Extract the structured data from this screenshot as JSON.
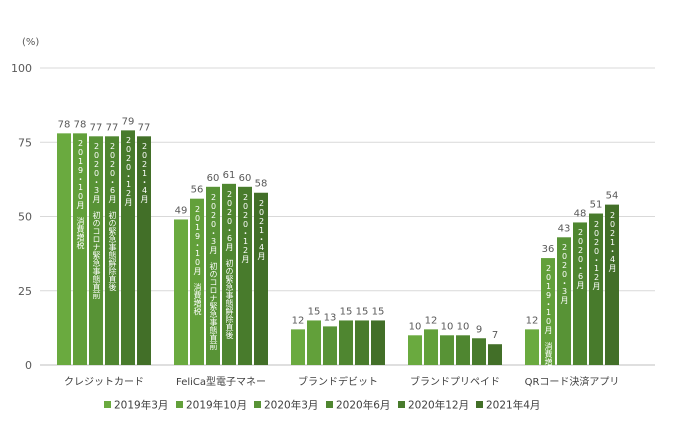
{
  "chart_data": {
    "type": "bar",
    "ylabel": "(%)",
    "ylim": [
      0,
      100
    ],
    "yticks": [
      0,
      25,
      50,
      75,
      100
    ],
    "grid": true,
    "legend_position": "bottom",
    "categories": [
      "クレジットカード",
      "FeliCa型電子マネー",
      "ブランドデビット",
      "ブランドプリペイド",
      "QRコード決済アプリ"
    ],
    "series": [
      {
        "name": "2019年3月",
        "color": "#6aaa3f",
        "values": [
          78,
          49,
          12,
          10,
          12
        ]
      },
      {
        "name": "2019年10月",
        "color": "#62a03a",
        "values": [
          78,
          56,
          15,
          12,
          36
        ]
      },
      {
        "name": "2020年3月",
        "color": "#589336",
        "values": [
          77,
          60,
          13,
          10,
          43
        ]
      },
      {
        "name": "2020年6月",
        "color": "#4f8630",
        "values": [
          77,
          61,
          15,
          10,
          48
        ]
      },
      {
        "name": "2020年12月",
        "color": "#487b2c",
        "values": [
          79,
          60,
          15,
          9,
          51
        ]
      },
      {
        "name": "2021年4月",
        "color": "#426f28",
        "values": [
          77,
          58,
          15,
          7,
          54
        ]
      }
    ],
    "annotations": [
      {
        "category": 0,
        "series": 1,
        "text": "2019・10月\n消費増税"
      },
      {
        "category": 0,
        "series": 2,
        "text": "2020・3月\n初のコロナ緊急事態直前"
      },
      {
        "category": 0,
        "series": 3,
        "text": "2020・6月\n初の緊急事態解除直後"
      },
      {
        "category": 0,
        "series": 4,
        "text": "2020・12月"
      },
      {
        "category": 0,
        "series": 5,
        "text": "2021・4月"
      },
      {
        "category": 1,
        "series": 1,
        "text": "2019・10月\n消費増税"
      },
      {
        "category": 1,
        "series": 2,
        "text": "2020・3月\n初のコロナ緊急事態直前"
      },
      {
        "category": 1,
        "series": 3,
        "text": "2020・6月\n初の緊急事態解除直後"
      },
      {
        "category": 1,
        "series": 4,
        "text": "2020・12月"
      },
      {
        "category": 1,
        "series": 5,
        "text": "2021・4月"
      },
      {
        "category": 4,
        "series": 1,
        "text": "2019・10月\n消費増税"
      },
      {
        "category": 4,
        "series": 2,
        "text": "2020・3月"
      },
      {
        "category": 4,
        "series": 3,
        "text": "2020・6月"
      },
      {
        "category": 4,
        "series": 4,
        "text": "2020・12月"
      },
      {
        "category": 4,
        "series": 5,
        "text": "2021・4月"
      }
    ]
  }
}
